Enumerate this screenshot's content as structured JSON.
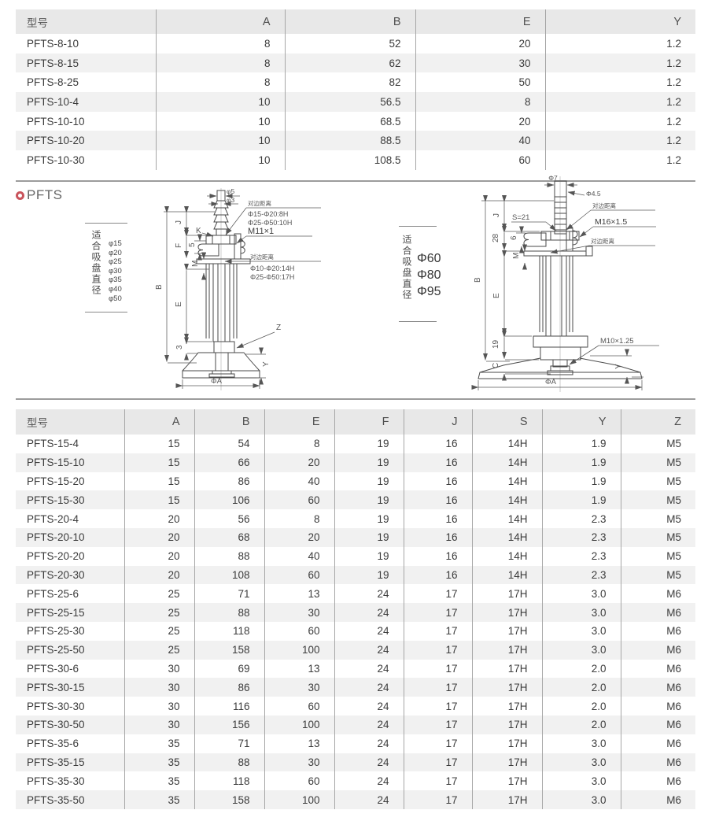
{
  "colors": {
    "bullet": "#c9545c",
    "separator": "#9c9c9c",
    "header_bg": "#e8e8e8",
    "stripe": "#f1f1f1",
    "line": "#4a4a4a"
  },
  "section": {
    "title": "PFTS"
  },
  "table1": {
    "headers": [
      "型号",
      "A",
      "B",
      "E",
      "Y"
    ],
    "rows": [
      [
        "PFTS-8-10",
        "8",
        "52",
        "20",
        "1.2"
      ],
      [
        "PFTS-8-15",
        "8",
        "62",
        "30",
        "1.2"
      ],
      [
        "PFTS-8-25",
        "8",
        "82",
        "50",
        "1.2"
      ],
      [
        "PFTS-10-4",
        "10",
        "56.5",
        "8",
        "1.2"
      ],
      [
        "PFTS-10-10",
        "10",
        "68.5",
        "20",
        "1.2"
      ],
      [
        "PFTS-10-20",
        "10",
        "88.5",
        "40",
        "1.2"
      ],
      [
        "PFTS-10-30",
        "10",
        "108.5",
        "60",
        "1.2"
      ]
    ]
  },
  "table2": {
    "headers": [
      "型号",
      "A",
      "B",
      "E",
      "F",
      "J",
      "S",
      "Y",
      "Z"
    ],
    "rows": [
      [
        "PFTS-15-4",
        "15",
        "54",
        "8",
        "19",
        "16",
        "14H",
        "1.9",
        "M5"
      ],
      [
        "PFTS-15-10",
        "15",
        "66",
        "20",
        "19",
        "16",
        "14H",
        "1.9",
        "M5"
      ],
      [
        "PFTS-15-20",
        "15",
        "86",
        "40",
        "19",
        "16",
        "14H",
        "1.9",
        "M5"
      ],
      [
        "PFTS-15-30",
        "15",
        "106",
        "60",
        "19",
        "16",
        "14H",
        "1.9",
        "M5"
      ],
      [
        "PFTS-20-4",
        "20",
        "56",
        "8",
        "19",
        "16",
        "14H",
        "2.3",
        "M5"
      ],
      [
        "PFTS-20-10",
        "20",
        "68",
        "20",
        "19",
        "16",
        "14H",
        "2.3",
        "M5"
      ],
      [
        "PFTS-20-20",
        "20",
        "88",
        "40",
        "19",
        "16",
        "14H",
        "2.3",
        "M5"
      ],
      [
        "PFTS-20-30",
        "20",
        "108",
        "60",
        "19",
        "16",
        "14H",
        "2.3",
        "M5"
      ],
      [
        "PFTS-25-6",
        "25",
        "71",
        "13",
        "24",
        "17",
        "17H",
        "3.0",
        "M6"
      ],
      [
        "PFTS-25-15",
        "25",
        "88",
        "30",
        "24",
        "17",
        "17H",
        "3.0",
        "M6"
      ],
      [
        "PFTS-25-30",
        "25",
        "118",
        "60",
        "24",
        "17",
        "17H",
        "3.0",
        "M6"
      ],
      [
        "PFTS-25-50",
        "25",
        "158",
        "100",
        "24",
        "17",
        "17H",
        "3.0",
        "M6"
      ],
      [
        "PFTS-30-6",
        "30",
        "69",
        "13",
        "24",
        "17",
        "17H",
        "2.0",
        "M6"
      ],
      [
        "PFTS-30-15",
        "30",
        "86",
        "30",
        "24",
        "17",
        "17H",
        "2.0",
        "M6"
      ],
      [
        "PFTS-30-30",
        "30",
        "116",
        "60",
        "24",
        "17",
        "17H",
        "2.0",
        "M6"
      ],
      [
        "PFTS-30-50",
        "30",
        "156",
        "100",
        "24",
        "17",
        "17H",
        "2.0",
        "M6"
      ],
      [
        "PFTS-35-6",
        "35",
        "71",
        "13",
        "24",
        "17",
        "17H",
        "3.0",
        "M6"
      ],
      [
        "PFTS-35-15",
        "35",
        "88",
        "30",
        "24",
        "17",
        "17H",
        "3.0",
        "M6"
      ],
      [
        "PFTS-35-30",
        "35",
        "118",
        "60",
        "24",
        "17",
        "17H",
        "3.0",
        "M6"
      ],
      [
        "PFTS-35-50",
        "35",
        "158",
        "100",
        "24",
        "17",
        "17H",
        "3.0",
        "M6"
      ]
    ]
  },
  "diagram_left": {
    "suitable_label": "适合吸盘直径",
    "diameters": [
      "φ15",
      "φ20",
      "φ25",
      "φ30",
      "φ35",
      "φ40",
      "φ50"
    ],
    "ann": {
      "phi5": "φ5",
      "phi3": "φ3",
      "k": "K",
      "flats1_label": "对边距离",
      "flats1a": "Φ15-Φ20:8H",
      "flats1b": "Φ25-Φ50:10H",
      "thread": "M11×1",
      "flats2_label": "对边距离",
      "flats2a": "Φ10-Φ20:14H",
      "flats2b": "Φ25-Φ50:17H",
      "dim_b": "B",
      "dim_j": "J",
      "dim_f": "F",
      "dim_5": "5",
      "dim_m": "M",
      "dim_e": "E",
      "dim_3": "3",
      "z": "Z",
      "y": "Y",
      "phiA": "ΦA"
    }
  },
  "diagram_right": {
    "suitable_label": "适合吸盘直径",
    "diameters": [
      "Φ60",
      "Φ80",
      "Φ95"
    ],
    "ann": {
      "phi7": "Φ7",
      "phi45": "Φ4.5",
      "s": "S=21",
      "flats1_label": "对边距离",
      "thread1": "M16×1.5",
      "flats2_label": "对边距离",
      "thread2": "M10×1.25",
      "dim_b": "B",
      "dim_j": "J",
      "dim_28": "28",
      "dim_6": "6",
      "dim_m": "M",
      "dim_e": "E",
      "dim_19": "19",
      "dim_c": "C",
      "y": "Y",
      "phiA": "ΦA"
    }
  }
}
